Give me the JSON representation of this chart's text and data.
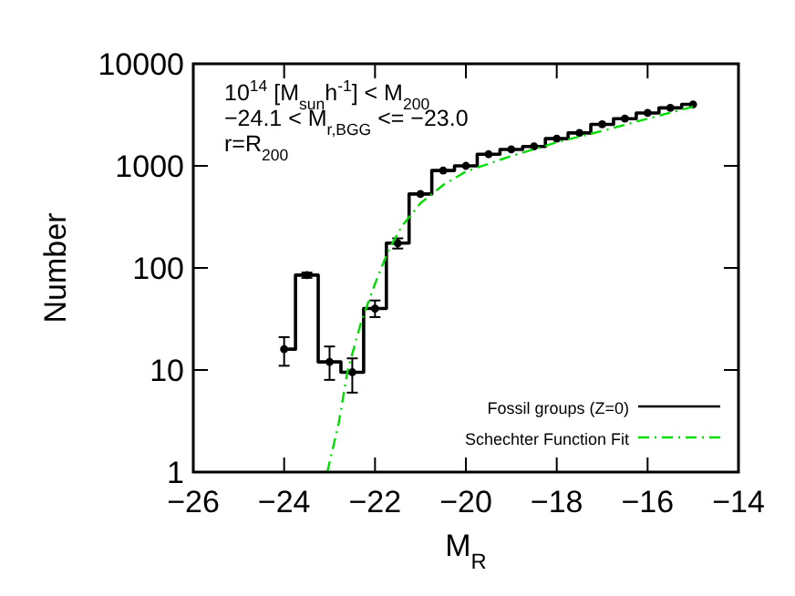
{
  "chart_data": {
    "type": "step",
    "xlabel": "M$_{R}$",
    "ylabel": "Number",
    "log": "y",
    "xlim": [
      -26,
      -14
    ],
    "ylim": [
      1,
      10000
    ],
    "xticks": [
      -26,
      -24,
      -22,
      -20,
      -18,
      -16,
      -14
    ],
    "yticks": [
      1,
      10,
      100,
      1000,
      10000
    ],
    "grid": false,
    "legend": "bottom right",
    "annotations": [
      "10$^{14}$ [M$_{sun}$h$^{-1}$] < M$_{200}$",
      "−24.1 < M$_{r,BGG}$ <= −23.0",
      "r=R$_{200}$"
    ],
    "series": [
      {
        "name": "Fossil groups (Z=0)",
        "color": "#000000",
        "marker": "circle",
        "line_style": "solid",
        "x": [
          -24,
          -23.5,
          -23,
          -22.5,
          -22,
          -21.5,
          -21,
          -20.5,
          -20,
          -19.5,
          -19,
          -18.5,
          -18,
          -17.5,
          -17,
          -16.5,
          -16,
          -15.5,
          -15
        ],
        "values": [
          16,
          85,
          12,
          9.5,
          40,
          175,
          530,
          900,
          1000,
          1300,
          1450,
          1550,
          1850,
          2100,
          2550,
          2900,
          3300,
          3700,
          4000
        ],
        "errors": [
          [
            11,
            21
          ],
          [
            80,
            90
          ],
          [
            8,
            17
          ],
          [
            6,
            13
          ],
          [
            33,
            48
          ],
          [
            155,
            195
          ],
          null,
          null,
          null,
          null,
          null,
          null,
          null,
          null,
          null,
          null,
          null,
          null,
          null
        ]
      },
      {
        "name": "Schechter Function Fit",
        "type": "line",
        "color": "#00dd00",
        "marker": "none",
        "line_style": "dashed",
        "x": [
          -23.05,
          -22.8,
          -22.6,
          -22.3,
          -22,
          -21.7,
          -21.4,
          -21,
          -20.5,
          -20,
          -19,
          -18,
          -17,
          -16,
          -15
        ],
        "values": [
          1,
          3,
          10,
          30,
          70,
          150,
          260,
          430,
          650,
          880,
          1250,
          1700,
          2200,
          2900,
          3800
        ]
      }
    ]
  }
}
